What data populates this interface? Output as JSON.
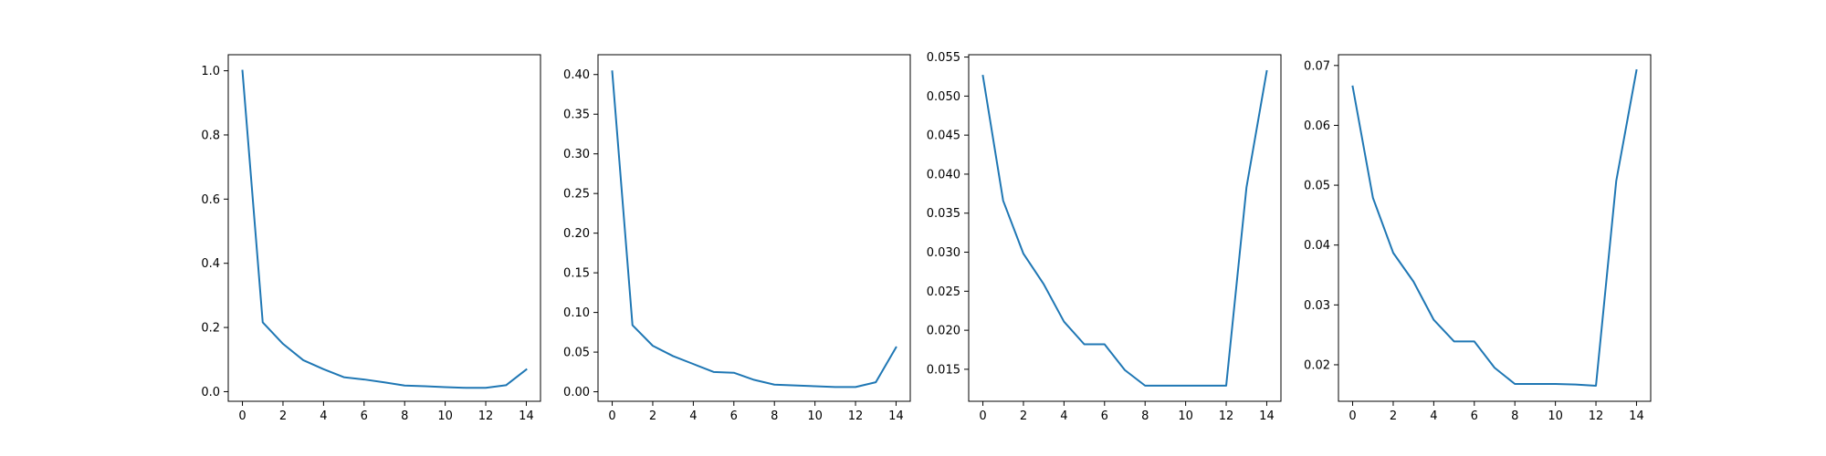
{
  "chart_data": [
    {
      "type": "line",
      "x": [
        0,
        1,
        2,
        3,
        4,
        5,
        6,
        7,
        8,
        9,
        10,
        11,
        12,
        13,
        14
      ],
      "series": [
        {
          "name": "",
          "values": [
            1.0,
            0.216,
            0.149,
            0.098,
            0.07,
            0.045,
            0.038,
            0.029,
            0.019,
            0.017,
            0.014,
            0.012,
            0.012,
            0.02,
            0.069
          ]
        }
      ],
      "xlim": [
        -0.7,
        14.7
      ],
      "ylim": [
        -0.03,
        1.05
      ],
      "xticks": [
        0,
        2,
        4,
        6,
        8,
        10,
        12,
        14
      ],
      "xtick_labels": [
        "0",
        "2",
        "4",
        "6",
        "8",
        "10",
        "12",
        "14"
      ],
      "yticks": [
        0.0,
        0.2,
        0.4,
        0.6,
        0.8,
        1.0
      ],
      "ytick_labels": [
        "0.0",
        "0.2",
        "0.4",
        "0.6",
        "0.8",
        "1.0"
      ],
      "title": "",
      "xlabel": "",
      "ylabel": "",
      "color": "#1f77b4"
    },
    {
      "type": "line",
      "x": [
        0,
        1,
        2,
        3,
        4,
        5,
        6,
        7,
        8,
        9,
        10,
        11,
        12,
        13,
        14
      ],
      "series": [
        {
          "name": "",
          "values": [
            0.404,
            0.084,
            0.058,
            0.045,
            0.035,
            0.025,
            0.024,
            0.015,
            0.009,
            0.008,
            0.007,
            0.006,
            0.006,
            0.012,
            0.056
          ]
        }
      ],
      "xlim": [
        -0.7,
        14.7
      ],
      "ylim": [
        -0.012,
        0.425
      ],
      "xticks": [
        0,
        2,
        4,
        6,
        8,
        10,
        12,
        14
      ],
      "xtick_labels": [
        "0",
        "2",
        "4",
        "6",
        "8",
        "10",
        "12",
        "14"
      ],
      "yticks": [
        0.0,
        0.05,
        0.1,
        0.15,
        0.2,
        0.25,
        0.3,
        0.35,
        0.4
      ],
      "ytick_labels": [
        "0.00",
        "0.05",
        "0.10",
        "0.15",
        "0.20",
        "0.25",
        "0.30",
        "0.35",
        "0.40"
      ],
      "title": "",
      "xlabel": "",
      "ylabel": "",
      "color": "#1f77b4"
    },
    {
      "type": "line",
      "x": [
        0,
        1,
        2,
        3,
        4,
        5,
        6,
        7,
        8,
        9,
        10,
        11,
        12,
        13,
        14
      ],
      "series": [
        {
          "name": "",
          "values": [
            0.0526,
            0.0366,
            0.0298,
            0.0259,
            0.0211,
            0.0182,
            0.0182,
            0.0149,
            0.0129,
            0.0129,
            0.0129,
            0.0129,
            0.0129,
            0.0383,
            0.0532
          ]
        }
      ],
      "xlim": [
        -0.7,
        14.7
      ],
      "ylim": [
        0.0109,
        0.0553
      ],
      "xticks": [
        0,
        2,
        4,
        6,
        8,
        10,
        12,
        14
      ],
      "xtick_labels": [
        "0",
        "2",
        "4",
        "6",
        "8",
        "10",
        "12",
        "14"
      ],
      "yticks": [
        0.015,
        0.02,
        0.025,
        0.03,
        0.035,
        0.04,
        0.045,
        0.05,
        0.055
      ],
      "ytick_labels": [
        "0.015",
        "0.020",
        "0.025",
        "0.030",
        "0.035",
        "0.040",
        "0.045",
        "0.050",
        "0.055"
      ],
      "title": "",
      "xlabel": "",
      "ylabel": "",
      "color": "#1f77b4"
    },
    {
      "type": "line",
      "x": [
        0,
        1,
        2,
        3,
        4,
        5,
        6,
        7,
        8,
        9,
        10,
        11,
        12,
        13,
        14
      ],
      "series": [
        {
          "name": "",
          "values": [
            0.0665,
            0.0479,
            0.0387,
            0.0339,
            0.0275,
            0.0239,
            0.0239,
            0.0195,
            0.0168,
            0.0168,
            0.0168,
            0.0167,
            0.0165,
            0.0507,
            0.0692
          ]
        }
      ],
      "xlim": [
        -0.7,
        14.7
      ],
      "ylim": [
        0.0139,
        0.0718
      ],
      "xticks": [
        0,
        2,
        4,
        6,
        8,
        10,
        12,
        14
      ],
      "xtick_labels": [
        "0",
        "2",
        "4",
        "6",
        "8",
        "10",
        "12",
        "14"
      ],
      "yticks": [
        0.02,
        0.03,
        0.04,
        0.05,
        0.06,
        0.07
      ],
      "ytick_labels": [
        "0.02",
        "0.03",
        "0.04",
        "0.05",
        "0.06",
        "0.07"
      ],
      "title": "",
      "xlabel": "",
      "ylabel": "",
      "color": "#1f77b4"
    }
  ]
}
